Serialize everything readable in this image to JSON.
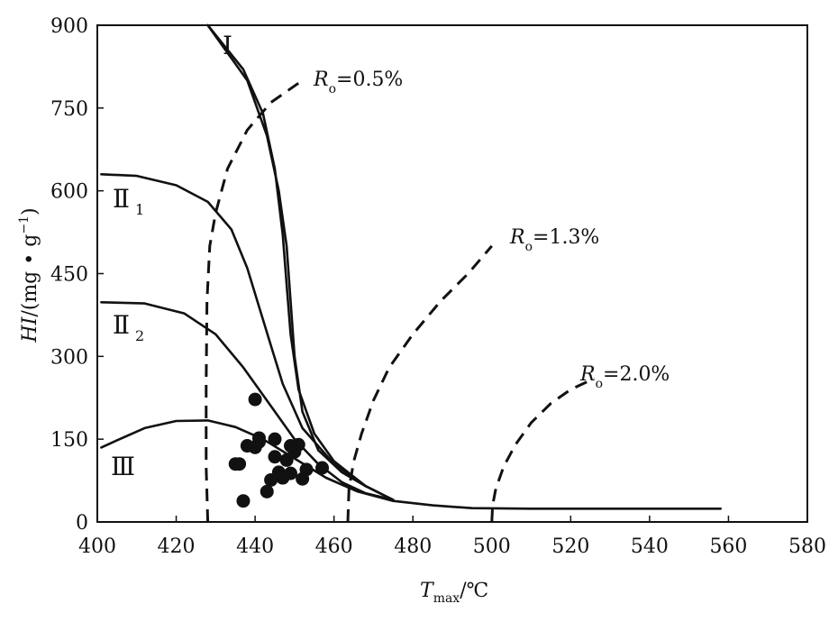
{
  "chart_data": {
    "type": "scatter",
    "xlabel": {
      "main": "T",
      "sub": "max",
      "unit": "/℃"
    },
    "ylabel": {
      "main": "HI",
      "unit_open": "/(mg • g",
      "unit_sup": "−1",
      "unit_close": ")"
    },
    "xlim": [
      400,
      580
    ],
    "ylim": [
      0,
      900
    ],
    "x_ticks": [
      400,
      420,
      440,
      460,
      480,
      500,
      520,
      540,
      560,
      580
    ],
    "y_ticks": [
      0,
      150,
      300,
      450,
      600,
      750,
      900
    ],
    "x_tick_labels": [
      "400",
      "420",
      "440",
      "460",
      "480",
      "500",
      "520",
      "540",
      "560",
      "580"
    ],
    "y_tick_labels": [
      "0",
      "150",
      "300",
      "450",
      "600",
      "750",
      "900"
    ],
    "grid": false,
    "kerogen_curves": [
      {
        "name": "Ⅰ",
        "label_main": "Ⅰ",
        "label_sub": "",
        "style": "solid",
        "x": [
          428,
          438,
          443,
          446,
          448,
          449,
          450,
          452,
          456,
          462,
          468
        ],
        "y": [
          900,
          800,
          700,
          600,
          500,
          400,
          300,
          200,
          130,
          90,
          65
        ]
      },
      {
        "name": "Ⅰ-upper",
        "label_main": "",
        "label_sub": "",
        "style": "solid",
        "x": [
          428,
          437,
          442,
          445,
          447,
          448,
          449,
          451,
          455,
          460,
          468,
          475
        ],
        "y": [
          900,
          820,
          740,
          640,
          520,
          430,
          340,
          240,
          160,
          110,
          65,
          40
        ]
      },
      {
        "name": "Ⅱ1",
        "label_main": "Ⅱ",
        "label_sub": "1",
        "style": "solid",
        "x": [
          401,
          410,
          420,
          428,
          434,
          438,
          441,
          444,
          447,
          452,
          460,
          468,
          475
        ],
        "y": [
          630,
          627,
          610,
          580,
          530,
          460,
          390,
          320,
          250,
          170,
          105,
          65,
          40
        ]
      },
      {
        "name": "Ⅱ2",
        "label_main": "Ⅱ",
        "label_sub": "2",
        "style": "solid",
        "x": [
          401,
          412,
          422,
          430,
          437,
          444,
          450,
          456,
          462,
          468,
          475
        ],
        "y": [
          398,
          396,
          378,
          340,
          280,
          210,
          150,
          105,
          72,
          52,
          40
        ]
      },
      {
        "name": "Ⅲ",
        "label_main": "Ⅲ",
        "label_sub": "",
        "style": "solid",
        "x": [
          401,
          405,
          412,
          420,
          428,
          435,
          442,
          450,
          458,
          466,
          475,
          485,
          495,
          510,
          530,
          558
        ],
        "y": [
          135,
          148,
          170,
          183,
          184,
          172,
          150,
          115,
          80,
          55,
          38,
          30,
          25,
          24,
          24,
          24
        ]
      }
    ],
    "ro_curves": [
      {
        "label_main": "R",
        "label_sub": "o",
        "label_value": "=0.5%",
        "style": "dashed",
        "x": [
          428,
          427.6,
          427.6,
          427.8,
          428.5,
          430,
          433,
          438,
          444,
          452
        ],
        "y": [
          0,
          100,
          250,
          400,
          500,
          560,
          640,
          710,
          760,
          800
        ]
      },
      {
        "label_main": "R",
        "label_sub": "o",
        "label_value": "=1.3%",
        "style": "dashed",
        "x": [
          463.5,
          463.8,
          465,
          467,
          470,
          474,
          480,
          487,
          494,
          500
        ],
        "y": [
          0,
          60,
          110,
          160,
          220,
          280,
          340,
          400,
          450,
          500
        ]
      },
      {
        "label_main": "R",
        "label_sub": "o",
        "label_value": "=2.0%",
        "style": "dashed",
        "x": [
          500,
          500.2,
          501,
          503,
          506,
          510,
          515,
          520,
          526
        ],
        "y": [
          0,
          30,
          60,
          100,
          140,
          180,
          215,
          240,
          260
        ]
      }
    ],
    "samples": {
      "x": [
        440,
        436,
        441,
        440,
        445,
        449,
        451,
        445,
        448,
        450,
        435,
        453,
        457,
        447,
        449,
        452,
        446,
        444,
        447,
        443,
        437,
        441,
        438
      ],
      "y": [
        222,
        105,
        152,
        135,
        150,
        138,
        140,
        118,
        112,
        127,
        105,
        95,
        98,
        80,
        88,
        78,
        90,
        76,
        80,
        55,
        38,
        145,
        138
      ]
    }
  }
}
